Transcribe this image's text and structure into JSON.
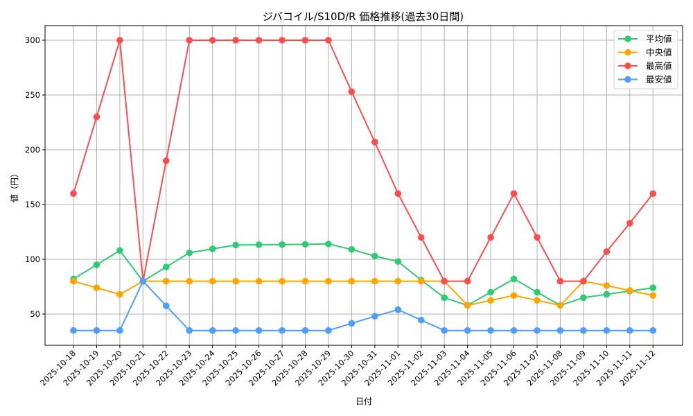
{
  "chart_data": {
    "type": "line",
    "title": "ジバコイル/S10D/R 価格推移(過去30日間)",
    "xlabel": "日付",
    "ylabel": "値（円）",
    "ylim": [
      22,
      312
    ],
    "yticks": [
      50,
      100,
      150,
      200,
      250,
      300
    ],
    "grid": true,
    "legend_position": "upper right",
    "categories": [
      "2025-10-18",
      "2025-10-19",
      "2025-10-20",
      "2025-10-21",
      "2025-10-22",
      "2025-10-23",
      "2025-10-24",
      "2025-10-25",
      "2025-10-26",
      "2025-10-27",
      "2025-10-28",
      "2025-10-29",
      "2025-10-30",
      "2025-10-31",
      "2025-11-01",
      "2025-11-02",
      "2025-11-03",
      "2025-11-04",
      "2025-11-05",
      "2025-11-06",
      "2025-11-07",
      "2025-11-08",
      "2025-11-09",
      "2025-11-10",
      "2025-11-11",
      "2025-11-12"
    ],
    "series": [
      {
        "name": "平均値",
        "color": "#2ecc71",
        "values": [
          82,
          95,
          108,
          80,
          93,
          106,
          109.5,
          113,
          113.3,
          113.5,
          113.7,
          114,
          109,
          103,
          98,
          81,
          65,
          58,
          70,
          82,
          70,
          58,
          65,
          68,
          71,
          74
        ]
      },
      {
        "name": "中央値",
        "color": "#ffa500",
        "values": [
          80,
          74,
          68,
          80,
          80,
          80,
          80,
          80,
          80,
          80,
          80,
          80,
          80,
          80,
          80,
          80,
          80,
          58,
          62.5,
          67,
          62.5,
          58,
          80,
          76,
          71.5,
          67
        ]
      },
      {
        "name": "最高値",
        "color": "#ff4d4d",
        "values": [
          160,
          230,
          300,
          80,
          190,
          300,
          300,
          300,
          300,
          300,
          300,
          300,
          253,
          207,
          160,
          120,
          80,
          80,
          120,
          160,
          120,
          80,
          80,
          107,
          133,
          160
        ]
      },
      {
        "name": "最安値",
        "color": "#4d9eff",
        "values": [
          35,
          35,
          35,
          80,
          57.5,
          35,
          35,
          35,
          35,
          35,
          35,
          35,
          41.5,
          48,
          54,
          44.5,
          35,
          35,
          35,
          35,
          35,
          35,
          35,
          35,
          35,
          35
        ]
      }
    ]
  }
}
